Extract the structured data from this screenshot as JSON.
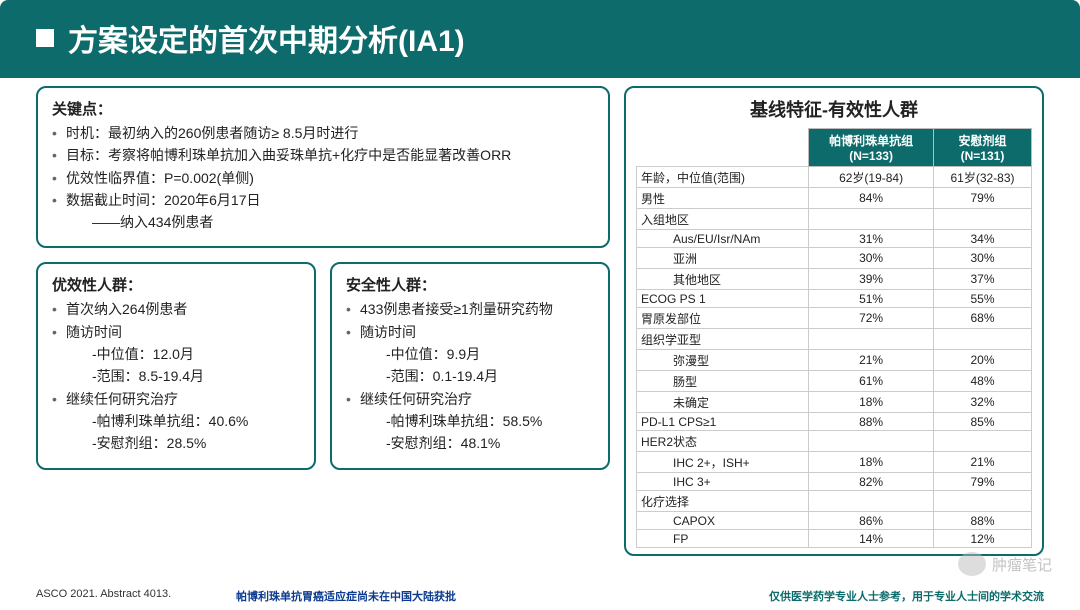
{
  "header": {
    "title": "方案设定的首次中期分析(IA1)"
  },
  "keypoints": {
    "title": "关键点：",
    "items": [
      "时机：最初纳入的260例患者随访≥ 8.5月时进行",
      "目标：考察将帕博利珠单抗加入曲妥珠单抗+化疗中是否能显著改善ORR",
      "优效性临界值：P=0.002(单侧)",
      "数据截止时间：2020年6月17日"
    ],
    "sub": "——纳入434例患者"
  },
  "eff": {
    "title": "优效性人群：",
    "l1": "首次纳入264例患者",
    "l2": "随访时间",
    "l2a": "-中位值：12.0月",
    "l2b": "-范围：8.5-19.4月",
    "l3": "继续任何研究治疗",
    "l3a": "-帕博利珠单抗组：40.6%",
    "l3b": "-安慰剂组：28.5%"
  },
  "saf": {
    "title": "安全性人群：",
    "l1": "433例患者接受≥1剂量研究药物",
    "l2": "随访时间",
    "l2a": "-中位值：9.9月",
    "l2b": "-范围：0.1-19.4月",
    "l3": "继续任何研究治疗",
    "l3a": "-帕博利珠单抗组：58.5%",
    "l3b": "-安慰剂组：48.1%"
  },
  "table": {
    "title": "基线特征-有效性人群",
    "col1": "帕博利珠单抗组\n(N=133)",
    "col2": "安慰剂组\n(N=131)",
    "rows": [
      {
        "k": "年龄，中位值(范围)",
        "a": "62岁(19-84)",
        "b": "61岁(32-83)",
        "ind": 0
      },
      {
        "k": "男性",
        "a": "84%",
        "b": "79%",
        "ind": 0
      },
      {
        "k": "入组地区",
        "a": "",
        "b": "",
        "ind": 0
      },
      {
        "k": "Aus/EU/Isr/NAm",
        "a": "31%",
        "b": "34%",
        "ind": 1
      },
      {
        "k": "亚洲",
        "a": "30%",
        "b": "30%",
        "ind": 1
      },
      {
        "k": "其他地区",
        "a": "39%",
        "b": "37%",
        "ind": 1
      },
      {
        "k": "ECOG PS 1",
        "a": "51%",
        "b": "55%",
        "ind": 0
      },
      {
        "k": "胃原发部位",
        "a": "72%",
        "b": "68%",
        "ind": 0
      },
      {
        "k": "组织学亚型",
        "a": "",
        "b": "",
        "ind": 0
      },
      {
        "k": "弥漫型",
        "a": "21%",
        "b": "20%",
        "ind": 1
      },
      {
        "k": "肠型",
        "a": "61%",
        "b": "48%",
        "ind": 1
      },
      {
        "k": "未确定",
        "a": "18%",
        "b": "32%",
        "ind": 1
      },
      {
        "k": "PD-L1 CPS≥1",
        "a": "88%",
        "b": "85%",
        "ind": 0
      },
      {
        "k": "HER2状态",
        "a": "",
        "b": "",
        "ind": 0
      },
      {
        "k": "IHC 2+，ISH+",
        "a": "18%",
        "b": "21%",
        "ind": 1
      },
      {
        "k": "IHC 3+",
        "a": "82%",
        "b": "79%",
        "ind": 1
      },
      {
        "k": "化疗选择",
        "a": "",
        "b": "",
        "ind": 0
      },
      {
        "k": "CAPOX",
        "a": "86%",
        "b": "88%",
        "ind": 1
      },
      {
        "k": "FP",
        "a": "14%",
        "b": "12%",
        "ind": 1
      }
    ]
  },
  "footer": {
    "left": "ASCO 2021. Abstract 4013.",
    "mid": "帕博利珠单抗胃癌适应症尚未在中国大陆获批",
    "right": "仅供医学药学专业人士参考，用于专业人士间的学术交流"
  },
  "chat": "肿瘤笔记"
}
